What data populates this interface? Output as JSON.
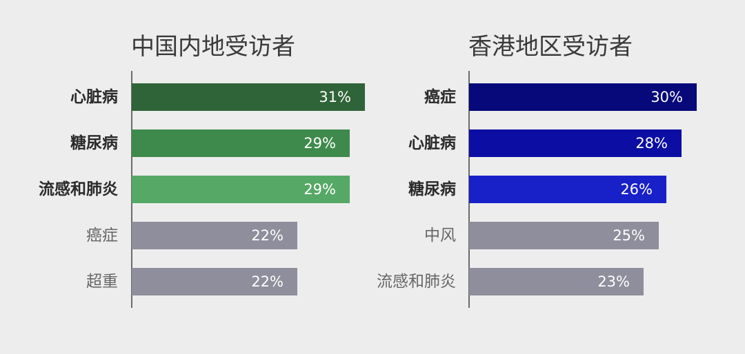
{
  "chart_data": [
    {
      "type": "bar",
      "orientation": "horizontal",
      "title": "中国内地受访者",
      "categories": [
        "心脏病",
        "糖尿病",
        "流感和肺炎",
        "癌症",
        "超重"
      ],
      "values": [
        31,
        29,
        29,
        22,
        22
      ],
      "value_labels": [
        "31%",
        "29%",
        "29%",
        "22%",
        "22%"
      ],
      "highlighted": [
        true,
        true,
        true,
        false,
        false
      ],
      "colors": [
        "#2f6438",
        "#3e8a4c",
        "#55a865",
        "#8e8e9c",
        "#8e8e9c"
      ],
      "xlim": [
        0,
        31
      ],
      "grid": false
    },
    {
      "type": "bar",
      "orientation": "horizontal",
      "title": "香港地区受访者",
      "categories": [
        "癌症",
        "心脏病",
        "糖尿病",
        "中风",
        "流感和肺炎"
      ],
      "values": [
        30,
        28,
        26,
        25,
        23
      ],
      "value_labels": [
        "30%",
        "28%",
        "26%",
        "25%",
        "23%"
      ],
      "highlighted": [
        true,
        true,
        true,
        false,
        false
      ],
      "colors": [
        "#07087a",
        "#0c0ea3",
        "#1820c8",
        "#8e8e9c",
        "#8e8e9c"
      ],
      "xlim": [
        0,
        30
      ],
      "grid": false
    }
  ]
}
